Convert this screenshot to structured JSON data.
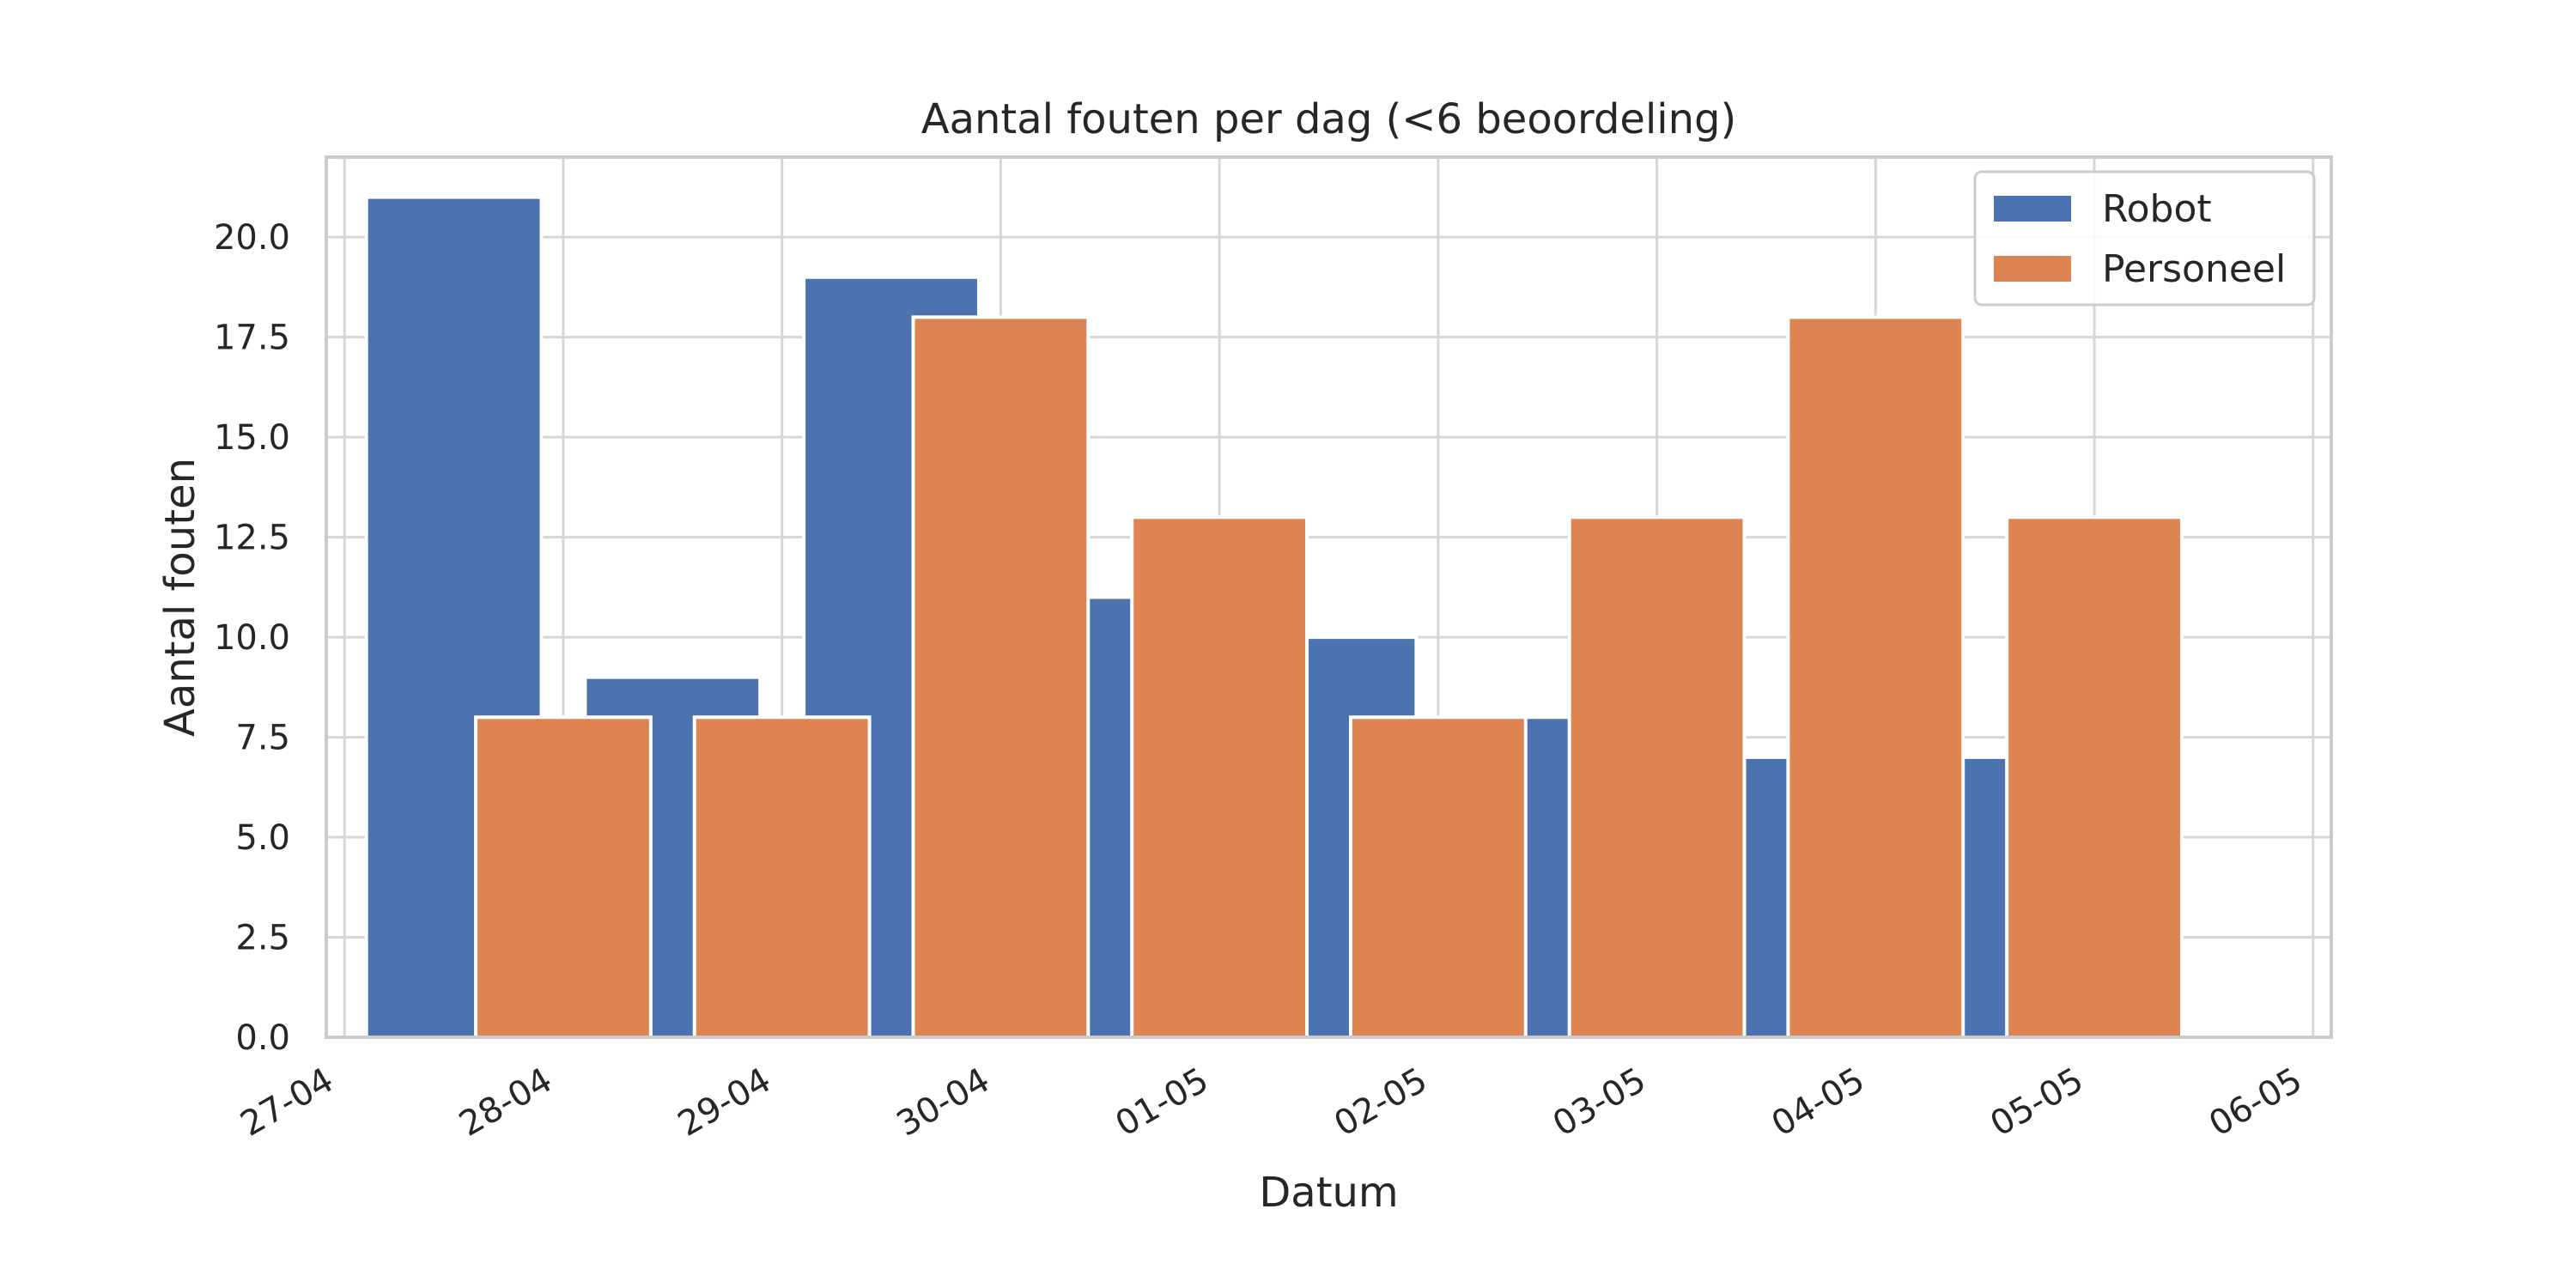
{
  "chart_data": {
    "type": "bar",
    "title": "Aantal fouten per dag (<6 beoordeling)",
    "xlabel": "Datum",
    "ylabel": "Aantal fouten",
    "x_tick_labels": [
      "27-04",
      "28-04",
      "29-04",
      "30-04",
      "01-05",
      "02-05",
      "03-05",
      "04-05",
      "05-05",
      "06-05"
    ],
    "y_tick_labels": [
      "0.0",
      "2.5",
      "5.0",
      "7.5",
      "10.0",
      "12.5",
      "15.0",
      "17.5",
      "20.0"
    ],
    "ylim": [
      0,
      22
    ],
    "xlim": [
      "2024-04-26T22:00",
      "2024-05-06T02:00"
    ],
    "grid": true,
    "legend_position": "top-right",
    "series": [
      {
        "name": "Robot",
        "color": "#4c72b0",
        "x": [
          "2024-04-27T12:00",
          "2024-04-28T12:00",
          "2024-04-29T12:00",
          "2024-04-30T12:00",
          "2024-05-01T12:00",
          "2024-05-02T12:00",
          "2024-05-03T12:00",
          "2024-05-04T12:00"
        ],
        "values": [
          21,
          9,
          19,
          11,
          10,
          8,
          7,
          7
        ]
      },
      {
        "name": "Personeel",
        "color": "#dd8452",
        "x": [
          "2024-04-28T00:00",
          "2024-04-29T00:00",
          "2024-04-30T00:00",
          "2024-05-01T00:00",
          "2024-05-02T00:00",
          "2024-05-03T00:00",
          "2024-05-04T00:00",
          "2024-05-05T00:00"
        ],
        "values": [
          8,
          8,
          18,
          13,
          8,
          13,
          18,
          13
        ]
      }
    ]
  }
}
